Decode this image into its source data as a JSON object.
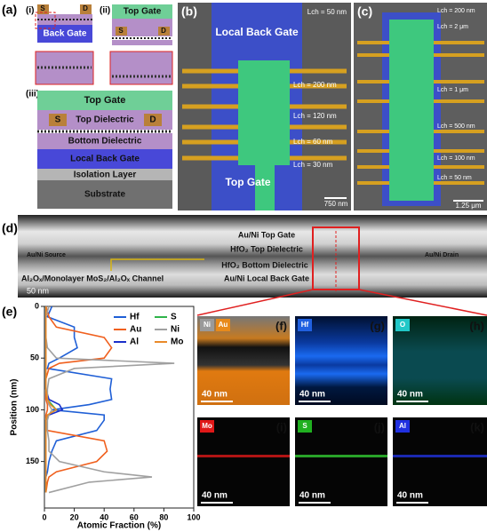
{
  "a": {
    "label": "(a)",
    "sub": [
      "(i)",
      "(ii)",
      "(iii)"
    ],
    "i_labels": [
      "S",
      "D",
      "Back Gate"
    ],
    "ii_labels": [
      "Top Gate",
      "S",
      "D"
    ],
    "stack": {
      "top_gate": "Top Gate",
      "s": "S",
      "top_dielectric": "Top Dielectric",
      "d": "D",
      "bottom_dielectric": "Bottom Dielectric",
      "local_back_gate": "Local Back Gate",
      "isolation": "Isolation Layer",
      "substrate": "Substrate"
    }
  },
  "b": {
    "label": "(b)",
    "gate": "Local Back Gate",
    "top_gate": "Top Gate",
    "lengths": [
      "Lch = 50 nm",
      "Lch = 200 nm",
      "Lch = 120 nm",
      "Lch = 60 nm",
      "Lch = 30 nm"
    ],
    "scale": "750 nm"
  },
  "c": {
    "label": "(c)",
    "lengths": [
      "Lch = 200 nm",
      "Lch = 2 μm",
      "Lch = 1 μm",
      "Lch = 500 nm",
      "Lch = 100 nm",
      "Lch = 50 nm"
    ],
    "scale": "1.25 μm"
  },
  "d": {
    "label": "(d)",
    "layers": [
      "Au/Ni Top Gate",
      "HfO₂ Top Dielectric",
      "HfO₂ Bottom  Dielectric",
      "Au/Ni Local Back Gate"
    ],
    "source": "Au/Ni Source",
    "drain": "Au/Ni Drain",
    "channel": "Al₂Oₓ/Monolayer MoS₂/Al₂Oₓ Channel",
    "scale": "50 nm"
  },
  "e_label": "(e)",
  "maps": [
    {
      "tag": "(f)",
      "elements": [
        "Ni",
        "Au"
      ],
      "scale": "40 nm"
    },
    {
      "tag": "(g)",
      "elements": [
        "Hf"
      ],
      "scale": "40 nm"
    },
    {
      "tag": "(h)",
      "elements": [
        "O"
      ],
      "scale": "40 nm"
    },
    {
      "tag": "(i)",
      "elements": [
        "Mo"
      ],
      "scale": "40 nm"
    },
    {
      "tag": "(j)",
      "elements": [
        "S"
      ],
      "scale": "40 nm"
    },
    {
      "tag": "(k)",
      "elements": [
        "Al"
      ],
      "scale": "40 nm"
    }
  ],
  "chart_data": {
    "type": "line",
    "value_axis": "horizontal",
    "position_reversed": true,
    "legend": "upper right",
    "position_label": "Position (nm)",
    "value_label": "Atomic Fraction (%)",
    "x": [
      0,
      10,
      20,
      30,
      40,
      50,
      55,
      60,
      70,
      80,
      90,
      95,
      100,
      105,
      110,
      120,
      130,
      140,
      150,
      160,
      165,
      170,
      180
    ],
    "xlim": [
      0,
      195
    ],
    "xticks": [
      0,
      50,
      100,
      150
    ],
    "ylim": [
      0,
      100
    ],
    "yticks": [
      0,
      20,
      40,
      60,
      80,
      100
    ],
    "series": [
      {
        "name": "Hf",
        "color": "#1f5fd6",
        "values": [
          5,
          2,
          20,
          20,
          22,
          10,
          3,
          2,
          45,
          44,
          45,
          30,
          5,
          40,
          40,
          35,
          8,
          5,
          3,
          2,
          1,
          1,
          1
        ]
      },
      {
        "name": "Au",
        "color": "#f0601e",
        "values": [
          1,
          3,
          8,
          40,
          45,
          40,
          10,
          3,
          1,
          1,
          1,
          2,
          2,
          1,
          1,
          2,
          40,
          42,
          35,
          8,
          3,
          2,
          1
        ]
      },
      {
        "name": "Al",
        "color": "#1a2fc9",
        "values": [
          1,
          1,
          1,
          1,
          1,
          1,
          1,
          1,
          1,
          1,
          3,
          10,
          12,
          3,
          1,
          1,
          1,
          1,
          1,
          1,
          1,
          1,
          1
        ]
      },
      {
        "name": "S",
        "color": "#2fb44a",
        "values": [
          1,
          1,
          1,
          1,
          1,
          1,
          1,
          1,
          1,
          1,
          2,
          5,
          8,
          2,
          1,
          1,
          1,
          1,
          1,
          1,
          1,
          1,
          1
        ]
      },
      {
        "name": "Ni",
        "color": "#a0a0a0",
        "values": [
          3,
          1,
          1,
          1,
          2,
          8,
          87,
          20,
          3,
          2,
          2,
          3,
          5,
          3,
          2,
          2,
          3,
          3,
          10,
          40,
          72,
          30,
          3
        ]
      },
      {
        "name": "Mo",
        "color": "#e98a2a",
        "values": [
          1,
          1,
          1,
          1,
          1,
          1,
          1,
          1,
          1,
          1,
          2,
          4,
          8,
          2,
          1,
          1,
          1,
          1,
          1,
          1,
          1,
          1,
          1
        ]
      }
    ]
  }
}
